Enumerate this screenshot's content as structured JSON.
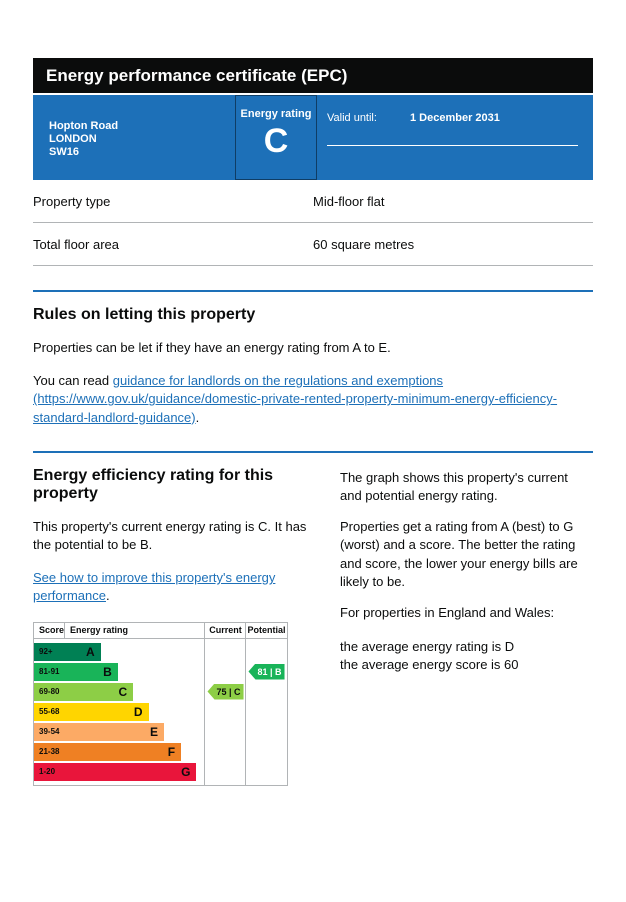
{
  "page": {
    "title": "Energy performance certificate (EPC)"
  },
  "colors": {
    "govuk_blue": "#1d70b8",
    "title_bar_black": "#0b0c0c",
    "border_gray": "#b1b4b6"
  },
  "banner": {
    "address_lines": [
      "Hopton Road",
      "LONDON",
      "SW16"
    ],
    "rating_label": "Energy rating",
    "rating_value": "C",
    "valid_label": "Valid until:",
    "valid_value": "1 December 2031"
  },
  "summary": {
    "rows": [
      {
        "label": "Property type",
        "value": "Mid-floor flat"
      },
      {
        "label": "Total floor area",
        "value": "60 square metres"
      }
    ]
  },
  "rules": {
    "heading": "Rules on letting this property",
    "p1": "Properties can be let if they have an energy rating from A to E.",
    "p2_prefix": "You can read ",
    "p2_link": "guidance for landlords on the regulations and exemptions",
    "p2_url": "(https://www.gov.uk/guidance/domestic-private-rented-property-minimum-energy-efficiency-standard-landlord-guidance)",
    "p2_suffix": "."
  },
  "efficiency": {
    "heading": "Energy efficiency rating for this property",
    "p1": "This property's current energy rating is C. It has the potential to be B.",
    "improve_link": "See how to improve this property's energy performance",
    "improve_suffix": ".",
    "right_p1": "The graph shows this property's current and potential energy rating.",
    "right_p2": "Properties get a rating from A (best) to G (worst) and a score. The better the rating and score, the lower your energy bills are likely to be.",
    "right_p3": "For properties in England and Wales:",
    "right_p4": "the average energy rating is D",
    "right_p5": "the average energy score is 60"
  },
  "chart_data": {
    "type": "bar",
    "title": "Energy efficiency rating",
    "headers": {
      "score": "Score",
      "rating": "Energy rating",
      "current": "Current",
      "potential": "Potential"
    },
    "bands": [
      {
        "score": "92+",
        "letter": "A",
        "color": "#008054",
        "width_pct": 39
      },
      {
        "score": "81-91",
        "letter": "B",
        "color": "#19b459",
        "width_pct": 49
      },
      {
        "score": "69-80",
        "letter": "C",
        "color": "#8dce46",
        "width_pct": 58
      },
      {
        "score": "55-68",
        "letter": "D",
        "color": "#ffd500",
        "width_pct": 67
      },
      {
        "score": "39-54",
        "letter": "E",
        "color": "#fcaa65",
        "width_pct": 76
      },
      {
        "score": "21-38",
        "letter": "F",
        "color": "#ef8023",
        "width_pct": 86
      },
      {
        "score": "1-20",
        "letter": "G",
        "color": "#e9153b",
        "width_pct": 95
      }
    ],
    "current": {
      "label": "75 | C",
      "value": 75,
      "band": "C",
      "band_index": 2,
      "color": "#8dce46",
      "text_color": "#0b0c0c"
    },
    "potential": {
      "label": "81 | B",
      "value": 81,
      "band": "B",
      "band_index": 1,
      "color": "#19b459",
      "text_color": "#ffffff"
    }
  }
}
